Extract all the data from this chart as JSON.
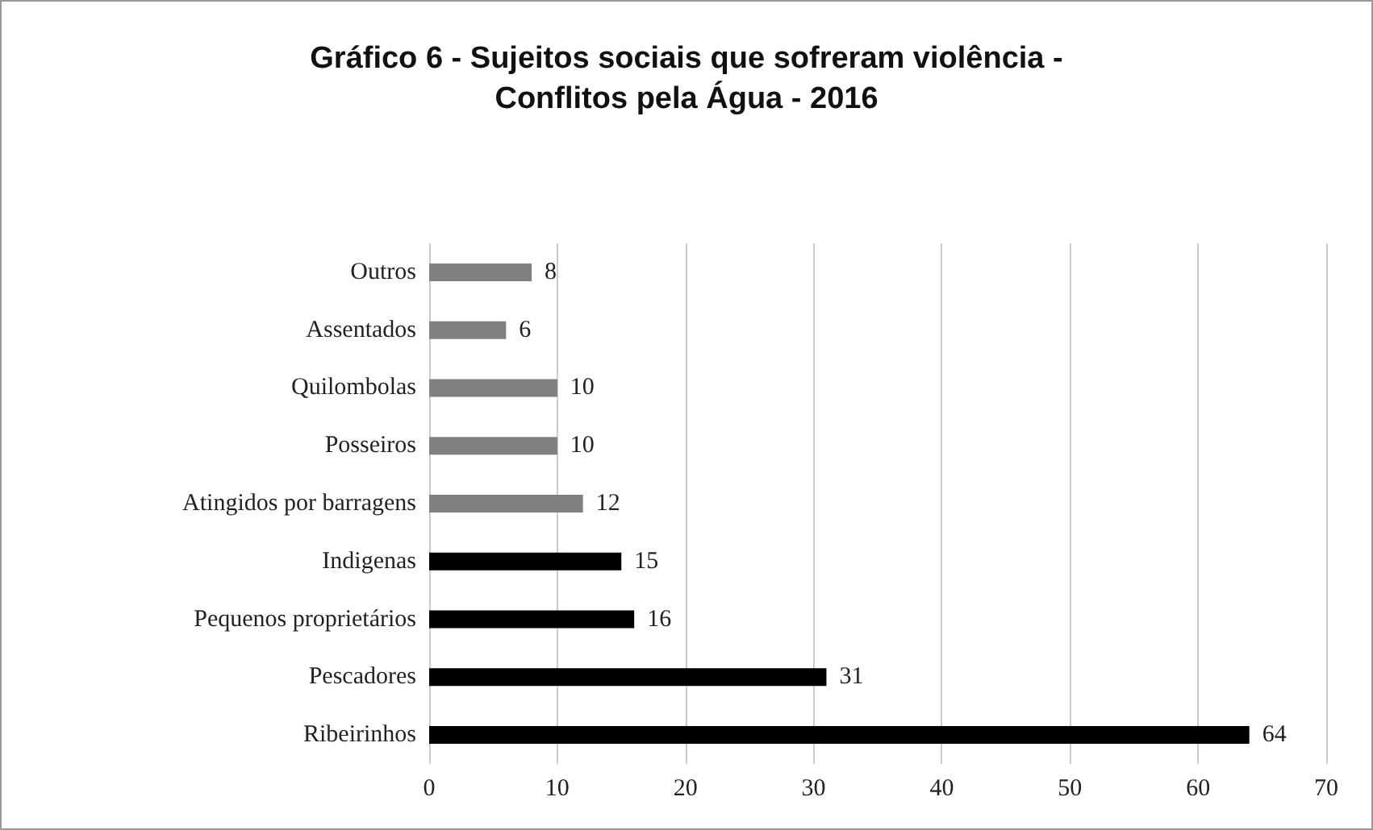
{
  "chart_data": {
    "type": "bar",
    "orientation": "horizontal",
    "title": "Gráfico 6 - Sujeitos sociais que sofreram violência -\nConflitos pela Água - 2016",
    "categories": [
      "Outros",
      "Assentados",
      "Quilombolas",
      "Posseiros",
      "Atingidos por barragens",
      "Indigenas",
      "Pequenos proprietários",
      "Pescadores",
      "Ribeirinhos"
    ],
    "values": [
      8,
      6,
      10,
      10,
      12,
      15,
      16,
      31,
      64
    ],
    "colors": [
      "#808080",
      "#808080",
      "#808080",
      "#808080",
      "#808080",
      "#000000",
      "#000000",
      "#000000",
      "#000000"
    ],
    "xlim": [
      0,
      70
    ],
    "xticks": [
      0,
      10,
      20,
      30,
      40,
      50,
      60,
      70
    ],
    "grid": "x",
    "data_labels": true
  }
}
